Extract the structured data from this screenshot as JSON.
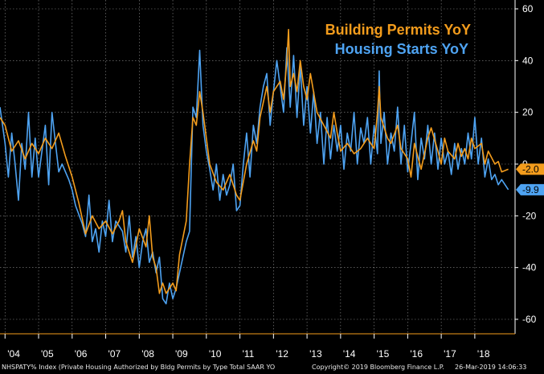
{
  "colors": {
    "background": "#000000",
    "permits": "#f39c1c",
    "starts": "#4ea3f2",
    "axis": "#ffffff",
    "grid": "#8f8f8f",
    "xaxis_line": "#f39c1c"
  },
  "footer": {
    "left": "NHSPATY% Index (Private Housing Authorized by Bldg Permits by Type Total SAAR YO",
    "copyright": "Copyright© 2019 Bloomberg Finance L.P.",
    "timestamp": "26-Mar-2019 14:06:33"
  },
  "chart_data": {
    "type": "line",
    "title": "",
    "xlabel": "",
    "ylabel": "",
    "ylim": [
      -60,
      60
    ],
    "yticks": [
      60,
      40,
      20,
      0,
      -20,
      -40,
      -60
    ],
    "xlim": [
      2003.85,
      2019.2
    ],
    "xticks": [
      {
        "label": "'04",
        "x": 2004.0
      },
      {
        "label": "'05",
        "x": 2005.0
      },
      {
        "label": "'06",
        "x": 2006.0
      },
      {
        "label": "'07",
        "x": 2007.0
      },
      {
        "label": "'08",
        "x": 2008.0
      },
      {
        "label": "'09",
        "x": 2009.0
      },
      {
        "label": "'10",
        "x": 2010.0
      },
      {
        "label": "'11",
        "x": 2011.0
      },
      {
        "label": "'12",
        "x": 2012.0
      },
      {
        "label": "'13",
        "x": 2013.0
      },
      {
        "label": "'14",
        "x": 2014.0
      },
      {
        "label": "'15",
        "x": 2015.0
      },
      {
        "label": "'16",
        "x": 2016.0
      },
      {
        "label": "'17",
        "x": 2017.0
      },
      {
        "label": "'18",
        "x": 2018.0
      }
    ],
    "grid": true,
    "legend_position": "top-right",
    "series": [
      {
        "name": "Building Permits YoY",
        "color": "#f39c1c",
        "last_value_label": "-2.0",
        "points": [
          [
            2003.85,
            18
          ],
          [
            2004.0,
            15
          ],
          [
            2004.2,
            5
          ],
          [
            2004.4,
            9
          ],
          [
            2004.6,
            2
          ],
          [
            2004.8,
            8
          ],
          [
            2005.0,
            4
          ],
          [
            2005.2,
            10
          ],
          [
            2005.4,
            6
          ],
          [
            2005.6,
            12
          ],
          [
            2005.8,
            3
          ],
          [
            2006.0,
            -5
          ],
          [
            2006.2,
            -15
          ],
          [
            2006.4,
            -27
          ],
          [
            2006.6,
            -20
          ],
          [
            2006.8,
            -25
          ],
          [
            2007.0,
            -22
          ],
          [
            2007.2,
            -27
          ],
          [
            2007.4,
            -22
          ],
          [
            2007.5,
            -18
          ],
          [
            2007.6,
            -30
          ],
          [
            2007.8,
            -38
          ],
          [
            2008.0,
            -25
          ],
          [
            2008.2,
            -32
          ],
          [
            2008.3,
            -20
          ],
          [
            2008.4,
            -36
          ],
          [
            2008.5,
            -40
          ],
          [
            2008.6,
            -50
          ],
          [
            2008.7,
            -46
          ],
          [
            2008.8,
            -50
          ],
          [
            2009.0,
            -46
          ],
          [
            2009.1,
            -49
          ],
          [
            2009.2,
            -35
          ],
          [
            2009.4,
            -22
          ],
          [
            2009.5,
            0
          ],
          [
            2009.6,
            18
          ],
          [
            2009.7,
            15
          ],
          [
            2009.8,
            28
          ],
          [
            2009.9,
            20
          ],
          [
            2010.0,
            10
          ],
          [
            2010.1,
            0
          ],
          [
            2010.3,
            -7
          ],
          [
            2010.5,
            -10
          ],
          [
            2010.7,
            -4
          ],
          [
            2010.9,
            -12
          ],
          [
            2011.0,
            -14
          ],
          [
            2011.2,
            0
          ],
          [
            2011.4,
            9
          ],
          [
            2011.5,
            5
          ],
          [
            2011.6,
            18
          ],
          [
            2011.8,
            30
          ],
          [
            2011.9,
            20
          ],
          [
            2012.0,
            28
          ],
          [
            2012.2,
            32
          ],
          [
            2012.3,
            25
          ],
          [
            2012.4,
            40
          ],
          [
            2012.45,
            52
          ],
          [
            2012.5,
            30
          ],
          [
            2012.6,
            35
          ],
          [
            2012.7,
            28
          ],
          [
            2012.8,
            40
          ],
          [
            2012.9,
            30
          ],
          [
            2013.0,
            25
          ],
          [
            2013.1,
            35
          ],
          [
            2013.3,
            20
          ],
          [
            2013.5,
            15
          ],
          [
            2013.7,
            10
          ],
          [
            2013.8,
            20
          ],
          [
            2013.9,
            12
          ],
          [
            2014.0,
            5
          ],
          [
            2014.2,
            8
          ],
          [
            2014.4,
            4
          ],
          [
            2014.6,
            6
          ],
          [
            2014.8,
            10
          ],
          [
            2014.9,
            8
          ],
          [
            2015.0,
            6
          ],
          [
            2015.1,
            20
          ],
          [
            2015.15,
            30
          ],
          [
            2015.2,
            18
          ],
          [
            2015.4,
            10
          ],
          [
            2015.5,
            8
          ],
          [
            2015.7,
            15
          ],
          [
            2015.8,
            6
          ],
          [
            2016.0,
            2
          ],
          [
            2016.1,
            -5
          ],
          [
            2016.2,
            8
          ],
          [
            2016.4,
            -2
          ],
          [
            2016.6,
            10
          ],
          [
            2016.7,
            14
          ],
          [
            2016.9,
            5
          ],
          [
            2017.0,
            0
          ],
          [
            2017.1,
            10
          ],
          [
            2017.2,
            5
          ],
          [
            2017.4,
            2
          ],
          [
            2017.5,
            8
          ],
          [
            2017.6,
            3
          ],
          [
            2017.7,
            6
          ],
          [
            2017.8,
            2
          ],
          [
            2017.9,
            10
          ],
          [
            2018.0,
            6
          ],
          [
            2018.2,
            8
          ],
          [
            2018.3,
            0
          ],
          [
            2018.4,
            5
          ],
          [
            2018.6,
            0
          ],
          [
            2018.7,
            1
          ],
          [
            2018.8,
            -3
          ],
          [
            2019.0,
            -2.0
          ]
        ]
      },
      {
        "name": "Housing Starts YoY",
        "color": "#4ea3f2",
        "last_value_label": "-9.9",
        "points": [
          [
            2003.85,
            22
          ],
          [
            2004.0,
            8
          ],
          [
            2004.1,
            -5
          ],
          [
            2004.2,
            12
          ],
          [
            2004.3,
            0
          ],
          [
            2004.4,
            -14
          ],
          [
            2004.5,
            8
          ],
          [
            2004.6,
            -2
          ],
          [
            2004.7,
            20
          ],
          [
            2004.8,
            -5
          ],
          [
            2004.9,
            10
          ],
          [
            2005.0,
            -5
          ],
          [
            2005.2,
            15
          ],
          [
            2005.3,
            -8
          ],
          [
            2005.4,
            20
          ],
          [
            2005.6,
            -3
          ],
          [
            2005.7,
            0
          ],
          [
            2005.9,
            -6
          ],
          [
            2006.0,
            -10
          ],
          [
            2006.1,
            -16
          ],
          [
            2006.3,
            -23
          ],
          [
            2006.4,
            -28
          ],
          [
            2006.5,
            -12
          ],
          [
            2006.6,
            -30
          ],
          [
            2006.7,
            -25
          ],
          [
            2006.8,
            -34
          ],
          [
            2006.9,
            -22
          ],
          [
            2007.0,
            -28
          ],
          [
            2007.1,
            -14
          ],
          [
            2007.2,
            -30
          ],
          [
            2007.3,
            -22
          ],
          [
            2007.5,
            -26
          ],
          [
            2007.6,
            -34
          ],
          [
            2007.7,
            -20
          ],
          [
            2007.8,
            -36
          ],
          [
            2007.9,
            -28
          ],
          [
            2008.0,
            -40
          ],
          [
            2008.1,
            -30
          ],
          [
            2008.2,
            -25
          ],
          [
            2008.3,
            -38
          ],
          [
            2008.4,
            -34
          ],
          [
            2008.5,
            -42
          ],
          [
            2008.6,
            -36
          ],
          [
            2008.7,
            -52
          ],
          [
            2008.8,
            -54
          ],
          [
            2008.9,
            -46
          ],
          [
            2009.0,
            -52
          ],
          [
            2009.1,
            -48
          ],
          [
            2009.2,
            -42
          ],
          [
            2009.4,
            -30
          ],
          [
            2009.5,
            -26
          ],
          [
            2009.6,
            22
          ],
          [
            2009.7,
            18
          ],
          [
            2009.8,
            44
          ],
          [
            2009.9,
            15
          ],
          [
            2010.0,
            5
          ],
          [
            2010.1,
            -2
          ],
          [
            2010.2,
            -10
          ],
          [
            2010.3,
            0
          ],
          [
            2010.4,
            -14
          ],
          [
            2010.5,
            -4
          ],
          [
            2010.6,
            -12
          ],
          [
            2010.7,
            -8
          ],
          [
            2010.8,
            0
          ],
          [
            2010.9,
            -18
          ],
          [
            2011.0,
            -16
          ],
          [
            2011.1,
            0
          ],
          [
            2011.2,
            12
          ],
          [
            2011.3,
            -5
          ],
          [
            2011.4,
            15
          ],
          [
            2011.5,
            8
          ],
          [
            2011.6,
            22
          ],
          [
            2011.7,
            30
          ],
          [
            2011.8,
            35
          ],
          [
            2011.9,
            15
          ],
          [
            2012.0,
            28
          ],
          [
            2012.1,
            40
          ],
          [
            2012.2,
            30
          ],
          [
            2012.3,
            20
          ],
          [
            2012.4,
            45
          ],
          [
            2012.5,
            22
          ],
          [
            2012.6,
            42
          ],
          [
            2012.7,
            18
          ],
          [
            2012.8,
            38
          ],
          [
            2012.9,
            15
          ],
          [
            2013.0,
            30
          ],
          [
            2013.1,
            12
          ],
          [
            2013.2,
            28
          ],
          [
            2013.3,
            8
          ],
          [
            2013.4,
            20
          ],
          [
            2013.5,
            0
          ],
          [
            2013.6,
            18
          ],
          [
            2013.7,
            2
          ],
          [
            2013.8,
            15
          ],
          [
            2013.9,
            5
          ],
          [
            2014.0,
            15
          ],
          [
            2014.1,
            -2
          ],
          [
            2014.2,
            12
          ],
          [
            2014.3,
            5
          ],
          [
            2014.4,
            20
          ],
          [
            2014.5,
            0
          ],
          [
            2014.6,
            14
          ],
          [
            2014.7,
            8
          ],
          [
            2014.8,
            18
          ],
          [
            2014.9,
            0
          ],
          [
            2015.0,
            15
          ],
          [
            2015.1,
            4
          ],
          [
            2015.15,
            36
          ],
          [
            2015.2,
            8
          ],
          [
            2015.3,
            20
          ],
          [
            2015.4,
            0
          ],
          [
            2015.5,
            12
          ],
          [
            2015.6,
            5
          ],
          [
            2015.7,
            22
          ],
          [
            2015.8,
            0
          ],
          [
            2015.9,
            15
          ],
          [
            2016.0,
            -3
          ],
          [
            2016.1,
            8
          ],
          [
            2016.2,
            20
          ],
          [
            2016.3,
            -6
          ],
          [
            2016.4,
            10
          ],
          [
            2016.5,
            2
          ],
          [
            2016.6,
            15
          ],
          [
            2016.7,
            0
          ],
          [
            2016.8,
            12
          ],
          [
            2016.9,
            -2
          ],
          [
            2017.0,
            10
          ],
          [
            2017.1,
            0
          ],
          [
            2017.2,
            5
          ],
          [
            2017.3,
            -4
          ],
          [
            2017.4,
            8
          ],
          [
            2017.5,
            -2
          ],
          [
            2017.6,
            6
          ],
          [
            2017.7,
            0
          ],
          [
            2017.8,
            12
          ],
          [
            2017.9,
            2
          ],
          [
            2018.0,
            18
          ],
          [
            2018.1,
            0
          ],
          [
            2018.2,
            10
          ],
          [
            2018.3,
            -5
          ],
          [
            2018.4,
            2
          ],
          [
            2018.5,
            -6
          ],
          [
            2018.6,
            -4
          ],
          [
            2018.7,
            -8
          ],
          [
            2018.8,
            -6
          ],
          [
            2019.0,
            -9.9
          ]
        ]
      }
    ]
  }
}
